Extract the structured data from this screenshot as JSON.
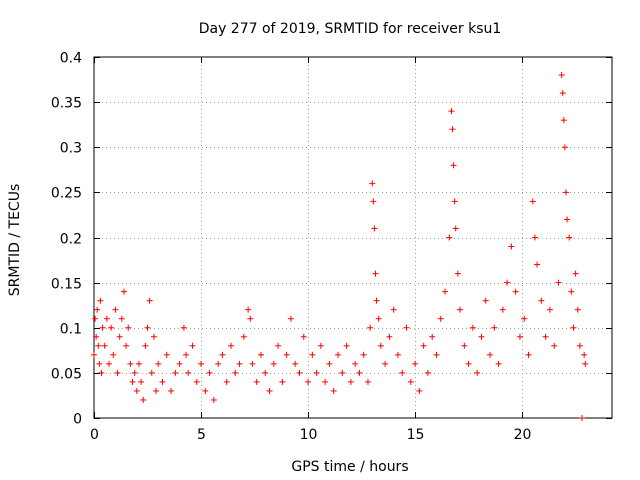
{
  "chart_data": {
    "type": "scatter",
    "title": "Day 277 of 2019, SRMTID for receiver ksu1",
    "xlabel": "GPS time / hours",
    "ylabel": "SRMTID / TECUs",
    "xlim": [
      0,
      24.2
    ],
    "ylim": [
      0,
      0.4
    ],
    "xticks": [
      0,
      5,
      10,
      15,
      20
    ],
    "xtick_labels": [
      "0",
      "5",
      "10",
      "15",
      "20"
    ],
    "yticks": [
      0,
      0.05,
      0.1,
      0.15,
      0.2,
      0.25,
      0.3,
      0.35,
      0.4
    ],
    "ytick_labels": [
      "0",
      "0.05",
      "0.1",
      "0.15",
      "0.2",
      "0.25",
      "0.3",
      "0.35",
      "0.4"
    ],
    "grid": true,
    "marker": "+",
    "color": "#ff0000",
    "series": [
      {
        "name": "SRMTID",
        "points": [
          [
            0.0,
            0.07
          ],
          [
            0.05,
            0.11
          ],
          [
            0.1,
            0.09
          ],
          [
            0.15,
            0.12
          ],
          [
            0.2,
            0.08
          ],
          [
            0.25,
            0.06
          ],
          [
            0.3,
            0.13
          ],
          [
            0.35,
            0.05
          ],
          [
            0.4,
            0.1
          ],
          [
            0.5,
            0.08
          ],
          [
            0.6,
            0.11
          ],
          [
            0.7,
            0.06
          ],
          [
            0.8,
            0.1
          ],
          [
            0.9,
            0.07
          ],
          [
            1.0,
            0.12
          ],
          [
            1.1,
            0.05
          ],
          [
            1.2,
            0.09
          ],
          [
            1.3,
            0.11
          ],
          [
            1.4,
            0.14
          ],
          [
            1.5,
            0.08
          ],
          [
            1.6,
            0.1
          ],
          [
            1.7,
            0.06
          ],
          [
            1.8,
            0.04
          ],
          [
            1.9,
            0.05
          ],
          [
            2.0,
            0.03
          ],
          [
            2.1,
            0.06
          ],
          [
            2.2,
            0.04
          ],
          [
            2.3,
            0.02
          ],
          [
            2.4,
            0.08
          ],
          [
            2.5,
            0.1
          ],
          [
            2.6,
            0.13
          ],
          [
            2.7,
            0.05
          ],
          [
            2.8,
            0.09
          ],
          [
            2.9,
            0.03
          ],
          [
            3.0,
            0.06
          ],
          [
            3.2,
            0.04
          ],
          [
            3.4,
            0.07
          ],
          [
            3.6,
            0.03
          ],
          [
            3.8,
            0.05
          ],
          [
            4.0,
            0.06
          ],
          [
            4.2,
            0.1
          ],
          [
            4.3,
            0.07
          ],
          [
            4.4,
            0.05
          ],
          [
            4.6,
            0.08
          ],
          [
            4.8,
            0.04
          ],
          [
            5.0,
            0.06
          ],
          [
            5.2,
            0.03
          ],
          [
            5.4,
            0.05
          ],
          [
            5.6,
            0.02
          ],
          [
            5.8,
            0.06
          ],
          [
            6.0,
            0.07
          ],
          [
            6.2,
            0.04
          ],
          [
            6.4,
            0.08
          ],
          [
            6.6,
            0.05
          ],
          [
            6.8,
            0.06
          ],
          [
            7.0,
            0.09
          ],
          [
            7.2,
            0.12
          ],
          [
            7.3,
            0.11
          ],
          [
            7.4,
            0.06
          ],
          [
            7.6,
            0.04
          ],
          [
            7.8,
            0.07
          ],
          [
            8.0,
            0.05
          ],
          [
            8.2,
            0.03
          ],
          [
            8.4,
            0.06
          ],
          [
            8.6,
            0.08
          ],
          [
            8.8,
            0.04
          ],
          [
            9.0,
            0.07
          ],
          [
            9.2,
            0.11
          ],
          [
            9.4,
            0.06
          ],
          [
            9.6,
            0.05
          ],
          [
            9.8,
            0.09
          ],
          [
            10.0,
            0.04
          ],
          [
            10.2,
            0.07
          ],
          [
            10.4,
            0.05
          ],
          [
            10.6,
            0.08
          ],
          [
            10.8,
            0.04
          ],
          [
            11.0,
            0.06
          ],
          [
            11.2,
            0.03
          ],
          [
            11.4,
            0.07
          ],
          [
            11.6,
            0.05
          ],
          [
            11.8,
            0.08
          ],
          [
            12.0,
            0.04
          ],
          [
            12.2,
            0.06
          ],
          [
            12.4,
            0.05
          ],
          [
            12.6,
            0.07
          ],
          [
            12.8,
            0.04
          ],
          [
            12.9,
            0.1
          ],
          [
            13.0,
            0.26
          ],
          [
            13.05,
            0.24
          ],
          [
            13.1,
            0.21
          ],
          [
            13.15,
            0.16
          ],
          [
            13.2,
            0.13
          ],
          [
            13.3,
            0.11
          ],
          [
            13.4,
            0.08
          ],
          [
            13.6,
            0.06
          ],
          [
            13.8,
            0.09
          ],
          [
            14.0,
            0.12
          ],
          [
            14.2,
            0.07
          ],
          [
            14.4,
            0.05
          ],
          [
            14.6,
            0.1
          ],
          [
            14.8,
            0.04
          ],
          [
            15.0,
            0.06
          ],
          [
            15.2,
            0.03
          ],
          [
            15.4,
            0.08
          ],
          [
            15.6,
            0.05
          ],
          [
            15.8,
            0.09
          ],
          [
            16.0,
            0.07
          ],
          [
            16.2,
            0.11
          ],
          [
            16.4,
            0.14
          ],
          [
            16.6,
            0.2
          ],
          [
            16.7,
            0.34
          ],
          [
            16.75,
            0.32
          ],
          [
            16.8,
            0.28
          ],
          [
            16.85,
            0.24
          ],
          [
            16.9,
            0.21
          ],
          [
            17.0,
            0.16
          ],
          [
            17.1,
            0.12
          ],
          [
            17.3,
            0.08
          ],
          [
            17.5,
            0.06
          ],
          [
            17.7,
            0.1
          ],
          [
            17.9,
            0.05
          ],
          [
            18.1,
            0.09
          ],
          [
            18.3,
            0.13
          ],
          [
            18.5,
            0.07
          ],
          [
            18.7,
            0.1
          ],
          [
            18.9,
            0.06
          ],
          [
            19.1,
            0.12
          ],
          [
            19.3,
            0.15
          ],
          [
            19.5,
            0.19
          ],
          [
            19.7,
            0.14
          ],
          [
            19.9,
            0.09
          ],
          [
            20.1,
            0.11
          ],
          [
            20.3,
            0.07
          ],
          [
            20.5,
            0.24
          ],
          [
            20.6,
            0.2
          ],
          [
            20.7,
            0.17
          ],
          [
            20.9,
            0.13
          ],
          [
            21.1,
            0.09
          ],
          [
            21.3,
            0.12
          ],
          [
            21.5,
            0.08
          ],
          [
            21.7,
            0.15
          ],
          [
            21.85,
            0.38
          ],
          [
            21.9,
            0.36
          ],
          [
            21.95,
            0.33
          ],
          [
            22.0,
            0.3
          ],
          [
            22.05,
            0.25
          ],
          [
            22.1,
            0.22
          ],
          [
            22.2,
            0.2
          ],
          [
            22.3,
            0.14
          ],
          [
            22.4,
            0.1
          ],
          [
            22.5,
            0.16
          ],
          [
            22.6,
            0.12
          ],
          [
            22.7,
            0.08
          ],
          [
            22.8,
            0.0
          ],
          [
            22.9,
            0.07
          ],
          [
            22.95,
            0.06
          ]
        ]
      }
    ]
  }
}
